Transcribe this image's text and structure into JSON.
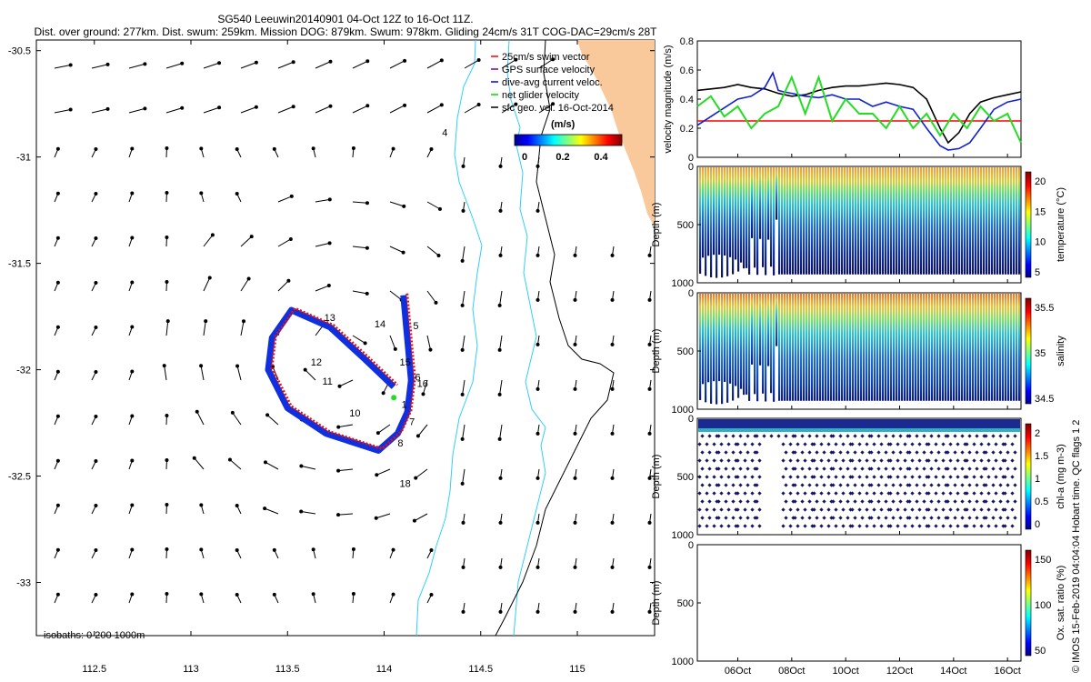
{
  "header": {
    "title_line1": "SG540 Leeuwin20140901 04-Oct 12Z to 16-Oct 11Z.",
    "title_line2": "Dist. over ground: 277km. Dist. swum: 259km. Mission DOG: 879km. Swum: 978km. Gliding 24cm/s 31T COG-DAC=29cm/s 28T"
  },
  "colors": {
    "land": "#f9c99b",
    "isobath": "#33ccff",
    "coast": "#000000",
    "dive_track": "#1030e0",
    "surface_track": "#e01010",
    "net_velocity": "#22dd22",
    "vel_black": "#000000",
    "vel_red": "#ff0000",
    "vel_blue": "#1020d0",
    "vel_green": "#22dd22"
  },
  "map": {
    "legend": [
      {
        "label": "25cm/s swim vector",
        "color": "#ff0000"
      },
      {
        "label": "GPS surface velocity",
        "color": "#880088"
      },
      {
        "label": "dive-avg current veloc.",
        "color": "#0000ff"
      },
      {
        "label": "net glider velocity",
        "color": "#00dd00"
      },
      {
        "label": "sfc geo. vel. 16-Oct-2014",
        "color": "#000000"
      }
    ],
    "colorbar_title": "(m/s)",
    "colorbar_ticks": [
      "0",
      "0.2",
      "0.4"
    ],
    "isobaths_note": "isobaths: 0   200  1000m",
    "track_labels": [
      "4",
      "5",
      "6",
      "7",
      "8",
      "10",
      "11",
      "12",
      "13",
      "14",
      "15",
      "16",
      "18",
      "1"
    ]
  },
  "chart_data": [
    {
      "type": "scatter",
      "title": "SG540 Leeuwin20140901 04-Oct 12Z to 16-Oct 11Z.",
      "xlabel": "",
      "ylabel": "",
      "xlim": [
        112.2,
        115.4
      ],
      "ylim": [
        -33.25,
        -30.45
      ],
      "x_ticks": [
        112.5,
        113,
        113.5,
        114,
        114.5,
        115
      ],
      "y_ticks": [
        -30.5,
        -31,
        -31.5,
        -32,
        -32.5,
        -33
      ],
      "x_tick_labels": [
        "112.5",
        "113",
        "113.5",
        "114",
        "114.5",
        "115"
      ],
      "y_tick_labels": [
        "-30.5",
        "-31",
        "-31.5",
        "-32",
        "-32.5",
        "-33"
      ],
      "track_waypoints": [
        [
          114.1,
          -31.65
        ],
        [
          114.12,
          -31.85
        ],
        [
          114.14,
          -32.05
        ],
        [
          114.12,
          -32.2
        ],
        [
          114.07,
          -32.3
        ],
        [
          113.97,
          -32.38
        ],
        [
          113.7,
          -32.3
        ],
        [
          113.5,
          -32.18
        ],
        [
          113.4,
          -32.0
        ],
        [
          113.42,
          -31.85
        ],
        [
          113.52,
          -31.72
        ],
        [
          113.72,
          -31.8
        ],
        [
          113.9,
          -31.95
        ],
        [
          114.05,
          -32.08
        ]
      ],
      "track_labels": [
        {
          "text": "4",
          "x": 114.3,
          "y": -30.9
        },
        {
          "text": "5",
          "x": 114.15,
          "y": -31.81
        },
        {
          "text": "6",
          "x": 114.16,
          "y": -32.05
        },
        {
          "text": "7",
          "x": 114.13,
          "y": -32.26
        },
        {
          "text": "8",
          "x": 114.07,
          "y": -32.36
        },
        {
          "text": "10",
          "x": 113.82,
          "y": -32.22
        },
        {
          "text": "11",
          "x": 113.68,
          "y": -32.07
        },
        {
          "text": "12",
          "x": 113.62,
          "y": -31.98
        },
        {
          "text": "13",
          "x": 113.69,
          "y": -31.77
        },
        {
          "text": "14",
          "x": 113.95,
          "y": -31.8
        },
        {
          "text": "15",
          "x": 114.08,
          "y": -31.98
        },
        {
          "text": "16",
          "x": 114.17,
          "y": -32.08
        },
        {
          "text": "18",
          "x": 114.08,
          "y": -32.55
        },
        {
          "text": "1",
          "x": 114.09,
          "y": -32.18
        }
      ]
    },
    {
      "type": "line",
      "ylabel": "velocity magnitude (m/s)",
      "ylim": [
        0,
        0.8
      ],
      "y_ticks": [
        "0",
        "0.2",
        "0.4",
        "0.6",
        "0.8"
      ],
      "x_days": [
        4.5,
        16.5
      ],
      "series": [
        {
          "color": "#000000",
          "x": [
            4.5,
            5,
            5.5,
            6,
            6.5,
            7,
            7.5,
            8,
            8.5,
            9,
            9.5,
            10,
            10.5,
            11,
            11.5,
            12,
            12.5,
            13,
            13.5,
            13.8,
            14.2,
            14.6,
            15,
            15.5,
            16,
            16.5
          ],
          "values": [
            0.46,
            0.47,
            0.48,
            0.5,
            0.48,
            0.47,
            0.44,
            0.42,
            0.43,
            0.46,
            0.48,
            0.49,
            0.49,
            0.5,
            0.51,
            0.5,
            0.48,
            0.4,
            0.2,
            0.1,
            0.17,
            0.3,
            0.38,
            0.41,
            0.43,
            0.45
          ]
        },
        {
          "color": "#ff0000",
          "x": [
            4.5,
            16.5
          ],
          "values": [
            0.25,
            0.25
          ]
        },
        {
          "color": "#1020d0",
          "x": [
            4.5,
            5,
            5.5,
            6,
            6.5,
            7,
            7.3,
            7.5,
            7.7,
            8,
            8.5,
            9,
            9.5,
            10,
            10.5,
            11,
            11.5,
            12,
            12.5,
            13,
            13.5,
            13.8,
            14.2,
            14.6,
            15,
            15.5,
            16,
            16.5
          ],
          "values": [
            0.22,
            0.28,
            0.34,
            0.4,
            0.42,
            0.48,
            0.58,
            0.46,
            0.45,
            0.44,
            0.42,
            0.41,
            0.43,
            0.4,
            0.4,
            0.35,
            0.38,
            0.35,
            0.33,
            0.2,
            0.08,
            0.05,
            0.06,
            0.1,
            0.2,
            0.33,
            0.38,
            0.4
          ]
        },
        {
          "color": "#22dd22",
          "x": [
            4.5,
            5,
            5.5,
            6,
            6.5,
            7,
            7.5,
            8,
            8.5,
            9,
            9.5,
            10,
            10.5,
            11,
            11.5,
            12,
            12.5,
            13,
            13.5,
            14,
            14.5,
            15,
            15.5,
            16,
            16.5
          ],
          "values": [
            0.35,
            0.42,
            0.28,
            0.35,
            0.2,
            0.3,
            0.35,
            0.55,
            0.3,
            0.55,
            0.25,
            0.4,
            0.3,
            0.3,
            0.2,
            0.35,
            0.2,
            0.3,
            0.15,
            0.3,
            0.2,
            0.35,
            0.25,
            0.3,
            0.1
          ]
        }
      ]
    },
    {
      "type": "heatmap",
      "ylabel": "Depth (m)",
      "colorbar_label": "temperature (°C)",
      "ylim": [
        0,
        1000
      ],
      "y_ticks": [
        "0",
        "500",
        "1000"
      ],
      "colorbar_ticks": [
        "5",
        "10",
        "15",
        "20"
      ]
    },
    {
      "type": "heatmap",
      "ylabel": "Depth (m)",
      "colorbar_label": "salinity",
      "ylim": [
        0,
        1000
      ],
      "y_ticks": [
        "0",
        "500",
        "1000"
      ],
      "colorbar_ticks": [
        "34.5",
        "35",
        "35.5"
      ]
    },
    {
      "type": "heatmap",
      "ylabel": "Depth (m)",
      "colorbar_label": "chl-a (mg m-3)",
      "ylim": [
        0,
        1000
      ],
      "y_ticks": [
        "0",
        "500",
        "1000"
      ],
      "colorbar_ticks": [
        "0",
        "0.5",
        "1",
        "1.5",
        "2"
      ]
    },
    {
      "type": "heatmap",
      "ylabel": "Depth (m)",
      "colorbar_label": "Ox. sat. ratio (%)",
      "ylim": [
        0,
        1000
      ],
      "y_ticks": [
        "0",
        "500",
        "1000"
      ],
      "colorbar_ticks": [
        "50",
        "100",
        "150"
      ],
      "x_tick_labels": [
        "06Oct",
        "08Oct",
        "10Oct",
        "12Oct",
        "14Oct",
        "16Oct"
      ],
      "x_tick_days": [
        6,
        8,
        10,
        12,
        14,
        16
      ]
    }
  ],
  "footer": {
    "copyright": "© IMOS 15-Feb-2019 04:04:04 Hobart time. QC flags 1  2"
  }
}
